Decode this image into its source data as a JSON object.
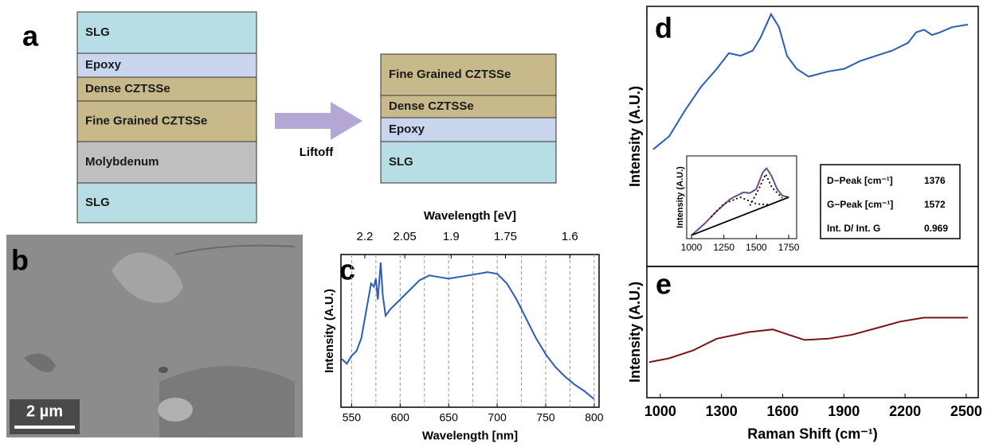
{
  "panel_labels": [
    "a",
    "b",
    "c",
    "d",
    "e"
  ],
  "stack_before": [
    "SLG",
    "Epoxy",
    "Dense CZTSSe",
    "Fine Grained CZTSSe",
    "Molybdenum",
    "SLG"
  ],
  "arrow_label": "Liftoff",
  "stack_after": [
    "Fine Grained CZTSSe",
    "Dense CZTSSe",
    "Epoxy",
    "SLG"
  ],
  "sem_scale_bar": "2 µm",
  "d_table": {
    "rows": [
      [
        "D−Peak [cm⁻¹]",
        1376
      ],
      [
        "G−Peak [cm⁻¹]",
        1572
      ],
      [
        "Int. D/ Int. G",
        0.969
      ]
    ]
  },
  "chart_data": [
    {
      "type": "line",
      "xlabel": "Wavelength [nm]",
      "x2label": "Wavelength [eV]",
      "ylabel": "Intensity (A.U.)",
      "xlim": [
        539,
        805
      ],
      "xticks": [
        550,
        600,
        650,
        700,
        750,
        800
      ],
      "xminor": [
        575,
        625,
        675,
        725,
        775
      ],
      "x2ticks": [
        2.2,
        2.05,
        1.9,
        1.75,
        1.6
      ],
      "xgrid": true,
      "ylim": [
        -0.05,
        0.9
      ],
      "x": [
        540,
        545,
        550,
        555,
        560,
        565,
        570,
        573,
        575,
        577,
        580,
        582,
        585,
        590,
        600,
        610,
        620,
        630,
        640,
        650,
        660,
        670,
        680,
        690,
        700,
        710,
        720,
        730,
        740,
        750,
        760,
        770,
        780,
        790,
        800
      ],
      "series": [
        {
          "color": "#2a5cb8",
          "values": [
            0.25,
            0.22,
            0.27,
            0.3,
            0.38,
            0.55,
            0.72,
            0.7,
            0.75,
            0.62,
            0.85,
            0.65,
            0.52,
            0.56,
            0.62,
            0.68,
            0.74,
            0.77,
            0.76,
            0.75,
            0.76,
            0.77,
            0.78,
            0.79,
            0.78,
            0.72,
            0.62,
            0.5,
            0.38,
            0.28,
            0.2,
            0.14,
            0.09,
            0.05,
            0.0
          ]
        }
      ]
    },
    {
      "type": "line",
      "ylabel": "Intensity (A.U.)",
      "xlim": [
        934,
        2559
      ],
      "ylim": [
        0,
        1
      ],
      "x": [
        965,
        1043,
        1121,
        1199,
        1277,
        1336,
        1395,
        1453,
        1492,
        1543,
        1582,
        1621,
        1668,
        1727,
        1824,
        1902,
        1980,
        2059,
        2137,
        2215,
        2254,
        2293,
        2332,
        2371,
        2430,
        2508
      ],
      "series": [
        {
          "color": "#2a5cb8",
          "values": [
            0.45,
            0.5,
            0.6,
            0.69,
            0.76,
            0.82,
            0.81,
            0.83,
            0.88,
            0.97,
            0.92,
            0.81,
            0.76,
            0.73,
            0.75,
            0.76,
            0.79,
            0.81,
            0.83,
            0.86,
            0.9,
            0.91,
            0.89,
            0.9,
            0.92,
            0.93
          ]
        }
      ]
    },
    {
      "type": "line",
      "ylabel": "Intensity (A.U.)",
      "xlim": [
        963,
        1811
      ],
      "xticks": [
        1000,
        1250,
        1500,
        1750
      ],
      "ylim": [
        0,
        1
      ],
      "series": [
        {
          "color": "#d62728",
          "style": "solid",
          "x": [
            1000,
            1100,
            1200,
            1300,
            1400,
            1450,
            1500,
            1550,
            1580,
            1620,
            1660,
            1700,
            1750
          ],
          "values": [
            0.04,
            0.18,
            0.34,
            0.48,
            0.56,
            0.55,
            0.6,
            0.8,
            0.85,
            0.75,
            0.6,
            0.52,
            0.5
          ]
        },
        {
          "color": "#2a5cb8",
          "style": "dashed",
          "x": [
            1000,
            1100,
            1200,
            1300,
            1400,
            1450,
            1500,
            1550,
            1580,
            1620,
            1660,
            1700,
            1750
          ],
          "values": [
            0.04,
            0.18,
            0.34,
            0.48,
            0.56,
            0.55,
            0.6,
            0.8,
            0.85,
            0.75,
            0.6,
            0.52,
            0.5
          ]
        },
        {
          "color": "#000000",
          "style": "dotted",
          "x": [
            1150,
            1250,
            1376,
            1500,
            1600
          ],
          "values": [
            0.26,
            0.42,
            0.5,
            0.42,
            0.41
          ]
        },
        {
          "color": "#000000",
          "style": "dotted",
          "x": [
            1450,
            1520,
            1572,
            1620,
            1700
          ],
          "values": [
            0.4,
            0.6,
            0.78,
            0.62,
            0.49
          ]
        },
        {
          "color": "#000000",
          "style": "solid",
          "x": [
            1000,
            1750
          ],
          "values": [
            0.04,
            0.5
          ]
        }
      ]
    },
    {
      "type": "line",
      "ylabel": "Intensity (A.U.)",
      "xlabel": "Raman Shift (cm⁻¹)",
      "xlim": [
        934,
        2559
      ],
      "xticks": [
        1000,
        1300,
        1600,
        1900,
        2200,
        2500
      ],
      "ylim": [
        0,
        1
      ],
      "x": [
        945,
        1043,
        1160,
        1277,
        1434,
        1551,
        1629,
        1707,
        1824,
        1941,
        2059,
        2176,
        2293,
        2410,
        2508
      ],
      "series": [
        {
          "color": "#7b1414",
          "values": [
            0.27,
            0.3,
            0.36,
            0.45,
            0.5,
            0.52,
            0.48,
            0.44,
            0.45,
            0.48,
            0.53,
            0.58,
            0.61,
            0.61,
            0.61
          ]
        }
      ]
    }
  ]
}
